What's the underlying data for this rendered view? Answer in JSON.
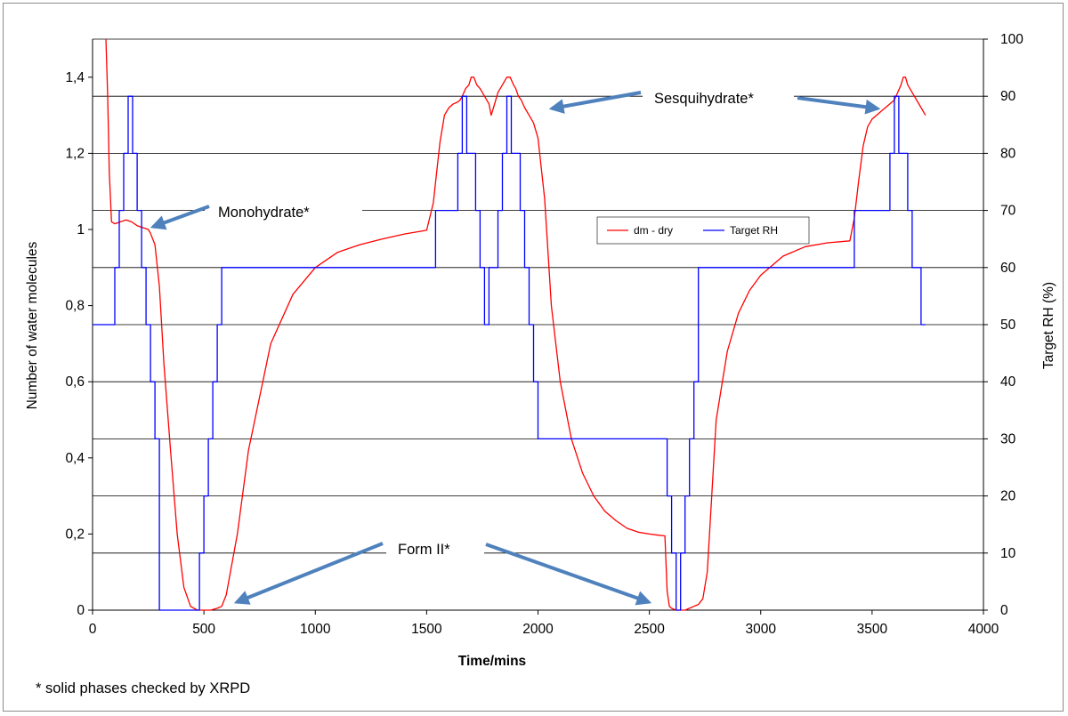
{
  "chart_data": {
    "type": "line",
    "xlabel": "Time/mins",
    "ylabel": "Number of water molecules",
    "y2label": "Target RH (%)",
    "xlim": [
      0,
      4000
    ],
    "ylim": [
      0,
      1.5
    ],
    "y2lim": [
      0,
      100
    ],
    "xticks": [
      0,
      500,
      1000,
      1500,
      2000,
      2500,
      3000,
      3500,
      4000
    ],
    "xtick_labels": [
      "0",
      "500",
      "1000",
      "1500",
      "2000",
      "2500",
      "3000",
      "3500",
      "4000"
    ],
    "yticks": [
      0,
      0.2,
      0.4,
      0.6,
      0.8,
      1,
      1.2,
      1.4
    ],
    "ytick_labels": [
      "0",
      "0,2",
      "0,4",
      "0,6",
      "0,8",
      "1",
      "1,2",
      "1,4"
    ],
    "y2ticks": [
      0,
      10,
      20,
      30,
      40,
      50,
      60,
      70,
      80,
      90,
      100
    ],
    "y2tick_labels": [
      "0",
      "10",
      "20",
      "30",
      "40",
      "50",
      "60",
      "70",
      "80",
      "90",
      "100"
    ],
    "grid": "horizontal, every 10 % RH",
    "legend_position": "center-right",
    "series": [
      {
        "name": "dm - dry",
        "axis": "left",
        "color": "#ff0000",
        "x": [
          60,
          68,
          75,
          85,
          100,
          150,
          175,
          200,
          250,
          260,
          280,
          300,
          320,
          350,
          380,
          410,
          440,
          470,
          500,
          530,
          560,
          580,
          600,
          650,
          700,
          800,
          900,
          1000,
          1100,
          1200,
          1300,
          1400,
          1500,
          1530,
          1545,
          1560,
          1580,
          1600,
          1620,
          1640,
          1650,
          1660,
          1675,
          1690,
          1700,
          1712,
          1725,
          1740,
          1760,
          1780,
          1790,
          1800,
          1820,
          1840,
          1860,
          1875,
          1890,
          1900,
          1912,
          1925,
          1940,
          1960,
          1980,
          2000,
          2030,
          2060,
          2100,
          2150,
          2200,
          2250,
          2300,
          2350,
          2400,
          2450,
          2500,
          2540,
          2570,
          2575,
          2580,
          2590,
          2600,
          2620,
          2640,
          2660,
          2680,
          2700,
          2720,
          2740,
          2760,
          2780,
          2800,
          2850,
          2900,
          2950,
          3000,
          3100,
          3200,
          3300,
          3400,
          3420,
          3440,
          3460,
          3480,
          3500,
          3520,
          3540,
          3560,
          3580,
          3600,
          3615,
          3630,
          3640,
          3650,
          3660,
          3680,
          3700,
          3720,
          3740
        ],
        "y": [
          1.5,
          1.35,
          1.15,
          1.02,
          1.015,
          1.025,
          1.02,
          1.01,
          1.0,
          0.99,
          0.96,
          0.85,
          0.65,
          0.42,
          0.2,
          0.06,
          0.01,
          0.0,
          0.0,
          0.0,
          0.005,
          0.01,
          0.04,
          0.2,
          0.42,
          0.7,
          0.83,
          0.9,
          0.94,
          0.96,
          0.975,
          0.988,
          0.998,
          1.07,
          1.15,
          1.23,
          1.3,
          1.32,
          1.33,
          1.335,
          1.34,
          1.35,
          1.37,
          1.38,
          1.4,
          1.4,
          1.38,
          1.37,
          1.35,
          1.33,
          1.3,
          1.32,
          1.36,
          1.38,
          1.4,
          1.4,
          1.38,
          1.37,
          1.35,
          1.34,
          1.32,
          1.3,
          1.28,
          1.24,
          1.08,
          0.8,
          0.6,
          0.45,
          0.36,
          0.3,
          0.26,
          0.235,
          0.215,
          0.205,
          0.2,
          0.197,
          0.195,
          0.12,
          0.05,
          0.01,
          0.005,
          0.0,
          0.0,
          0.0,
          0.005,
          0.01,
          0.015,
          0.03,
          0.1,
          0.3,
          0.5,
          0.68,
          0.78,
          0.84,
          0.88,
          0.93,
          0.955,
          0.965,
          0.97,
          1.03,
          1.13,
          1.22,
          1.27,
          1.29,
          1.3,
          1.31,
          1.32,
          1.33,
          1.34,
          1.36,
          1.38,
          1.4,
          1.4,
          1.38,
          1.36,
          1.34,
          1.32,
          1.3
        ]
      },
      {
        "name": "Target RH",
        "axis": "right",
        "color": "#0000ff",
        "x": [
          0,
          100,
          100,
          120,
          120,
          140,
          140,
          160,
          160,
          180,
          180,
          200,
          200,
          220,
          220,
          240,
          240,
          260,
          260,
          280,
          280,
          300,
          300,
          480,
          480,
          500,
          500,
          520,
          520,
          540,
          540,
          560,
          560,
          580,
          580,
          1540,
          1540,
          1640,
          1640,
          1660,
          1660,
          1680,
          1680,
          1720,
          1720,
          1740,
          1740,
          1760,
          1760,
          1780,
          1780,
          1820,
          1820,
          1840,
          1840,
          1860,
          1860,
          1880,
          1880,
          1920,
          1920,
          1940,
          1940,
          1960,
          1960,
          1980,
          1980,
          2000,
          2000,
          2020,
          2020,
          2580,
          2580,
          2600,
          2600,
          2620,
          2620,
          2640,
          2640,
          2660,
          2660,
          2680,
          2680,
          2700,
          2700,
          2720,
          2720,
          3420,
          3420,
          3580,
          3580,
          3600,
          3600,
          3620,
          3620,
          3660,
          3660,
          3680,
          3680,
          3720,
          3720,
          3740
        ],
        "y": [
          50,
          50,
          60,
          60,
          70,
          70,
          80,
          80,
          90,
          90,
          80,
          80,
          70,
          70,
          60,
          60,
          50,
          50,
          40,
          40,
          30,
          30,
          0,
          0,
          10,
          10,
          20,
          20,
          30,
          30,
          40,
          40,
          50,
          50,
          60,
          60,
          70,
          70,
          80,
          80,
          90,
          90,
          80,
          80,
          70,
          70,
          60,
          60,
          50,
          50,
          60,
          60,
          70,
          70,
          80,
          80,
          90,
          90,
          80,
          80,
          70,
          70,
          60,
          60,
          50,
          50,
          40,
          40,
          30,
          30,
          30,
          30,
          20,
          20,
          10,
          10,
          0,
          0,
          10,
          10,
          20,
          20,
          30,
          30,
          40,
          40,
          60,
          60,
          70,
          70,
          80,
          80,
          90,
          90,
          80,
          80,
          70,
          70,
          60,
          60,
          50,
          50
        ]
      }
    ],
    "annotations": [
      {
        "text": "Monohydrate*",
        "points_to": [
          {
            "x": 300,
            "y": 1.0
          }
        ]
      },
      {
        "text": "Sesquihydrate*",
        "points_to": [
          {
            "x": 2000,
            "y": 1.32
          },
          {
            "x": 3560,
            "y": 1.33
          }
        ]
      },
      {
        "text": "Form II*",
        "points_to": [
          {
            "x": 580,
            "y": 0.01
          },
          {
            "x": 2570,
            "y": 0.0
          }
        ]
      }
    ],
    "footnote": "* solid phases checked by XRPD"
  },
  "colors": {
    "dry_series": "#ff0000",
    "rh_series": "#0000ff",
    "arrow": "#4f81bd",
    "gridline": "#000000",
    "frame": "#8c8c8c"
  }
}
